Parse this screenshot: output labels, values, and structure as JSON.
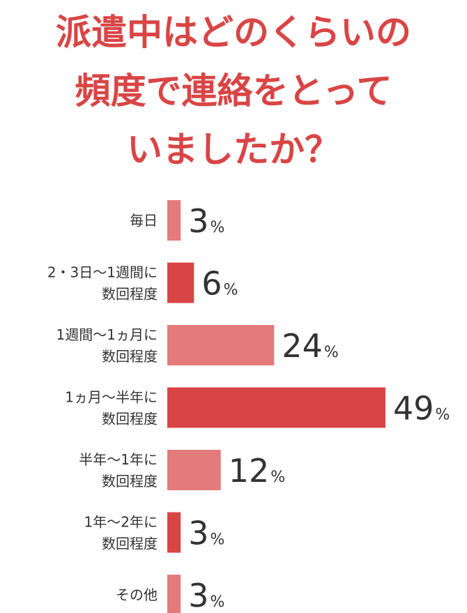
{
  "chart_data": {
    "type": "bar",
    "orientation": "horizontal",
    "title_lines": [
      "派遣中はどのくらいの",
      "頻度で連絡をとって",
      "いましたか？"
    ],
    "categories": [
      [
        "毎日"
      ],
      [
        "2・3日〜1週間に",
        "数回程度"
      ],
      [
        "1週間〜1ヵ月に",
        "数回程度"
      ],
      [
        "1ヵ月〜半年に",
        "数回程度"
      ],
      [
        "半年〜1年に",
        "数回程度"
      ],
      [
        "1年〜2年に",
        "数回程度"
      ],
      [
        "その他"
      ]
    ],
    "values": [
      3,
      6,
      24,
      49,
      12,
      3,
      3
    ],
    "unit": "%",
    "bar_colors": [
      "#e47b7b",
      "#d94545",
      "#e47b7b",
      "#d94545",
      "#e47b7b",
      "#d94545",
      "#e47b7b"
    ],
    "title_color": "#d94545",
    "text_color": "#333333",
    "grid": false,
    "legend": "none"
  }
}
